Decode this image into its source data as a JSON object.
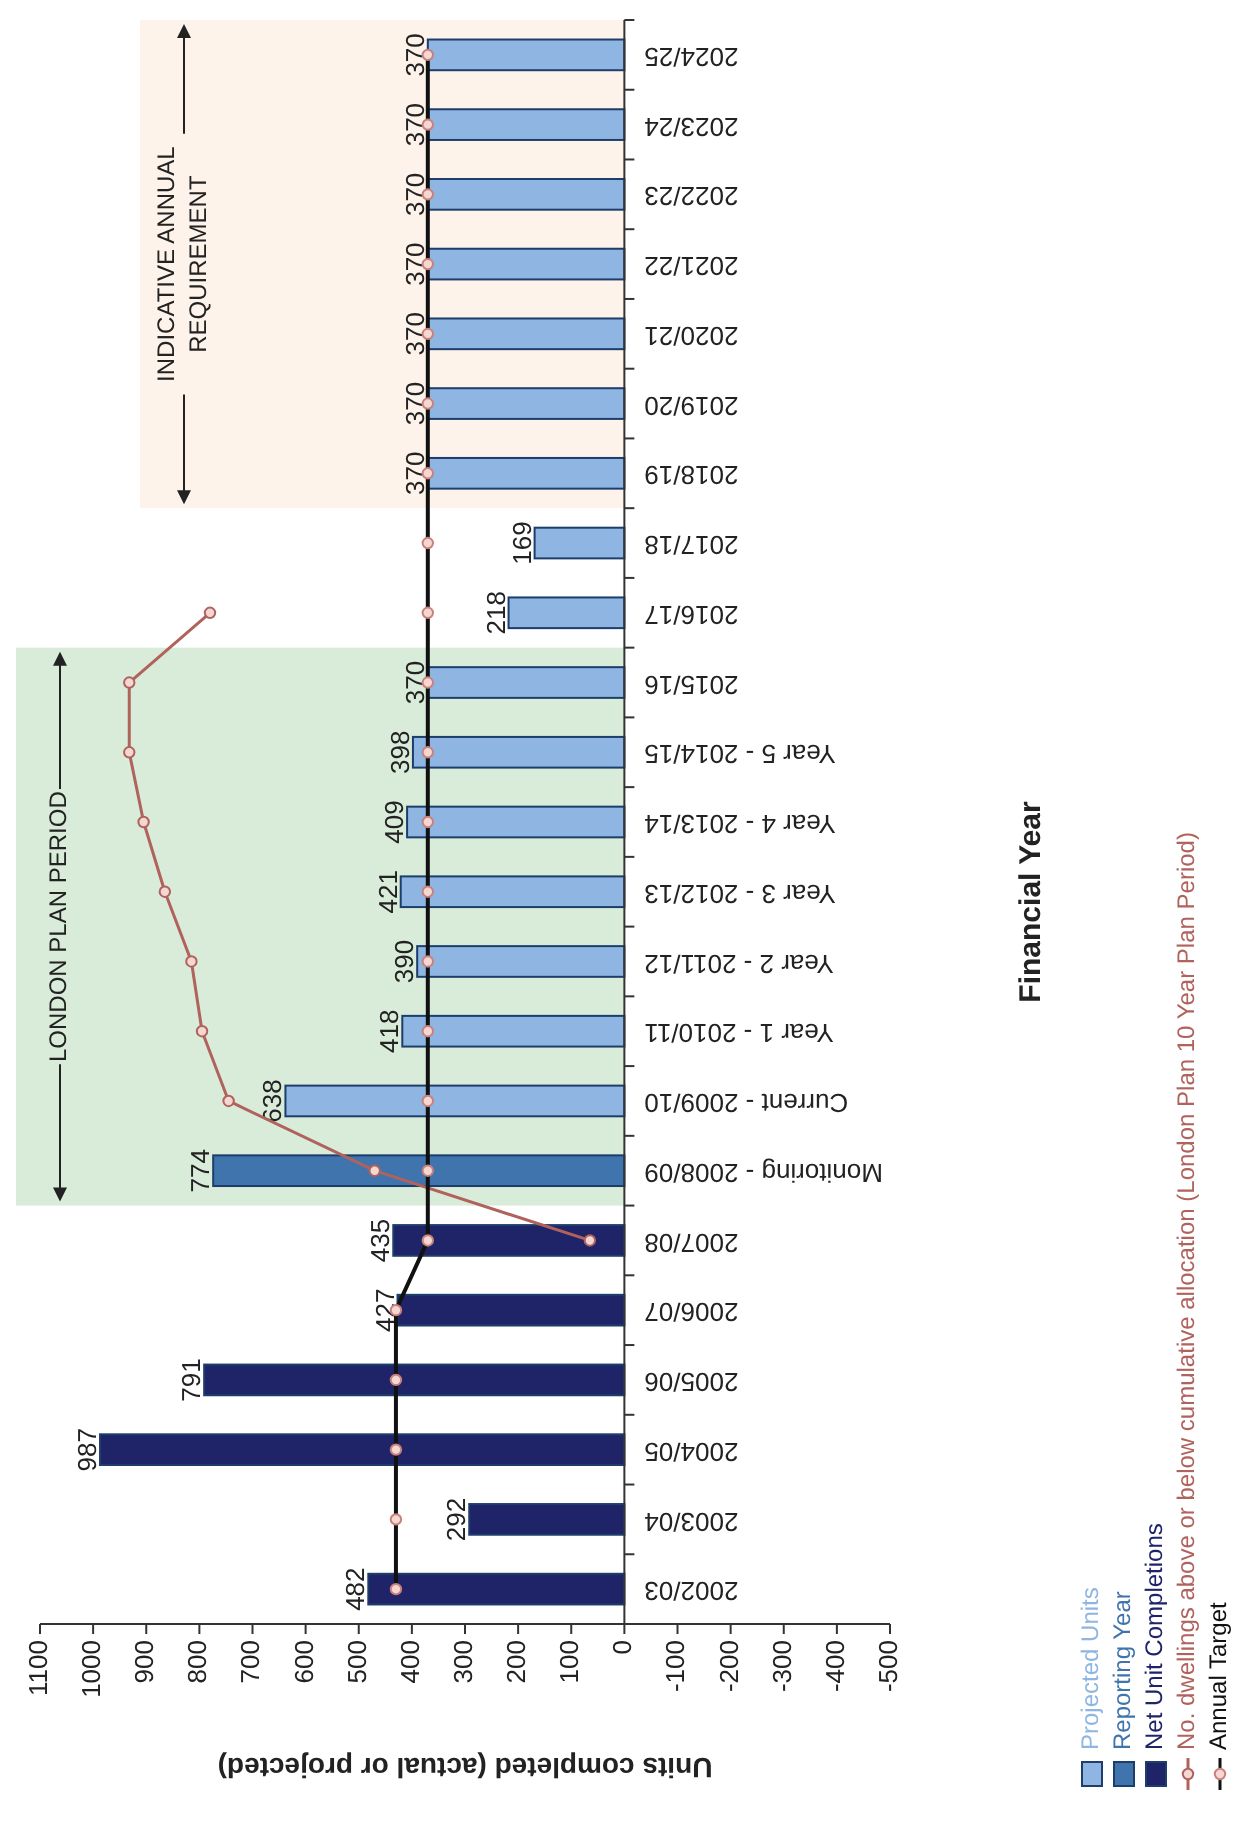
{
  "chart_data": {
    "type": "bar",
    "orientation": "horizontal",
    "xlabel": "Units completed (actual or projected)",
    "ylabel": "Financial Year",
    "categories": [
      "2024/25",
      "2023/24",
      "2022/23",
      "2021/22",
      "2020/21",
      "2019/20",
      "2018/19",
      "2017/18",
      "2016/17",
      "2015/16",
      "Year 5 - 2014/15",
      "Year 4 - 2013/14",
      "Year 3 - 2012/13",
      "Year 2 - 2011/12",
      "Year 1 - 2010/11",
      "Current - 2009/10",
      "Monitoring - 2008/09",
      "2007/08",
      "2006/07",
      "2005/06",
      "2004/05",
      "2003/04",
      "2002/03"
    ],
    "series": [
      {
        "name": "Projected Units",
        "color": "#8fb6e2",
        "values": [
          370,
          370,
          370,
          370,
          370,
          370,
          370,
          169,
          218,
          370,
          398,
          409,
          421,
          390,
          418,
          638,
          null,
          null,
          null,
          null,
          null,
          null,
          null
        ],
        "value_labels": [
          "370",
          "370",
          "370",
          "370",
          "370",
          "370",
          "370",
          "169",
          "218",
          "370",
          "398",
          "409",
          "421",
          "390",
          "418",
          "638",
          null,
          null,
          null,
          null,
          null,
          null,
          null
        ]
      },
      {
        "name": "Reporting Year",
        "color": "#3f74ad",
        "values": [
          null,
          null,
          null,
          null,
          null,
          null,
          null,
          null,
          null,
          null,
          null,
          null,
          null,
          null,
          null,
          null,
          774,
          null,
          null,
          null,
          null,
          null,
          null
        ],
        "value_labels": [
          null,
          null,
          null,
          null,
          null,
          null,
          null,
          null,
          null,
          null,
          null,
          null,
          null,
          null,
          null,
          null,
          "774",
          null,
          null,
          null,
          null,
          null,
          null
        ]
      },
      {
        "name": "Net Unit Completions",
        "color": "#1f2368",
        "values": [
          null,
          null,
          null,
          null,
          null,
          null,
          null,
          null,
          null,
          null,
          null,
          null,
          null,
          null,
          null,
          null,
          null,
          435,
          427,
          791,
          987,
          292,
          482
        ],
        "value_labels": [
          null,
          null,
          null,
          null,
          null,
          null,
          null,
          null,
          null,
          null,
          null,
          null,
          null,
          null,
          null,
          null,
          null,
          "435",
          "427",
          "791",
          "987",
          "292",
          "482"
        ]
      },
      {
        "name": "No. dwellings above or below cumulative allocation (London Plan 10 Year Plan Period)",
        "type": "line",
        "color": "#b0625c",
        "values": [
          null,
          null,
          null,
          null,
          null,
          null,
          null,
          null,
          780,
          932,
          932,
          905,
          865,
          815,
          795,
          745,
          470,
          65,
          null,
          null,
          null,
          null,
          null
        ]
      },
      {
        "name": "Annual Target",
        "type": "line",
        "color": "#111111",
        "values": [
          370,
          370,
          370,
          370,
          370,
          370,
          370,
          370,
          370,
          370,
          370,
          370,
          370,
          370,
          370,
          370,
          370,
          370,
          430,
          430,
          430,
          430,
          430
        ]
      }
    ],
    "bands": [
      {
        "axis": "y",
        "from": "2015/16",
        "to": "Monitoring - 2008/09",
        "label": "LONDON PLAN PERIOD",
        "color": "#d9ecd9"
      },
      {
        "axis": "y",
        "from": "2024/25",
        "to": "2018/19",
        "label": "INDICATIVE ANNUAL\nREQUIREMENT",
        "color": "#fdf3ea"
      }
    ],
    "xlim": [
      1100,
      -500
    ],
    "xticks": [
      1100,
      1000,
      900,
      800,
      700,
      600,
      500,
      400,
      300,
      200,
      100,
      0,
      -100,
      -200,
      -300,
      -400,
      -500
    ],
    "marker": "circle",
    "legend": "bottom right"
  }
}
